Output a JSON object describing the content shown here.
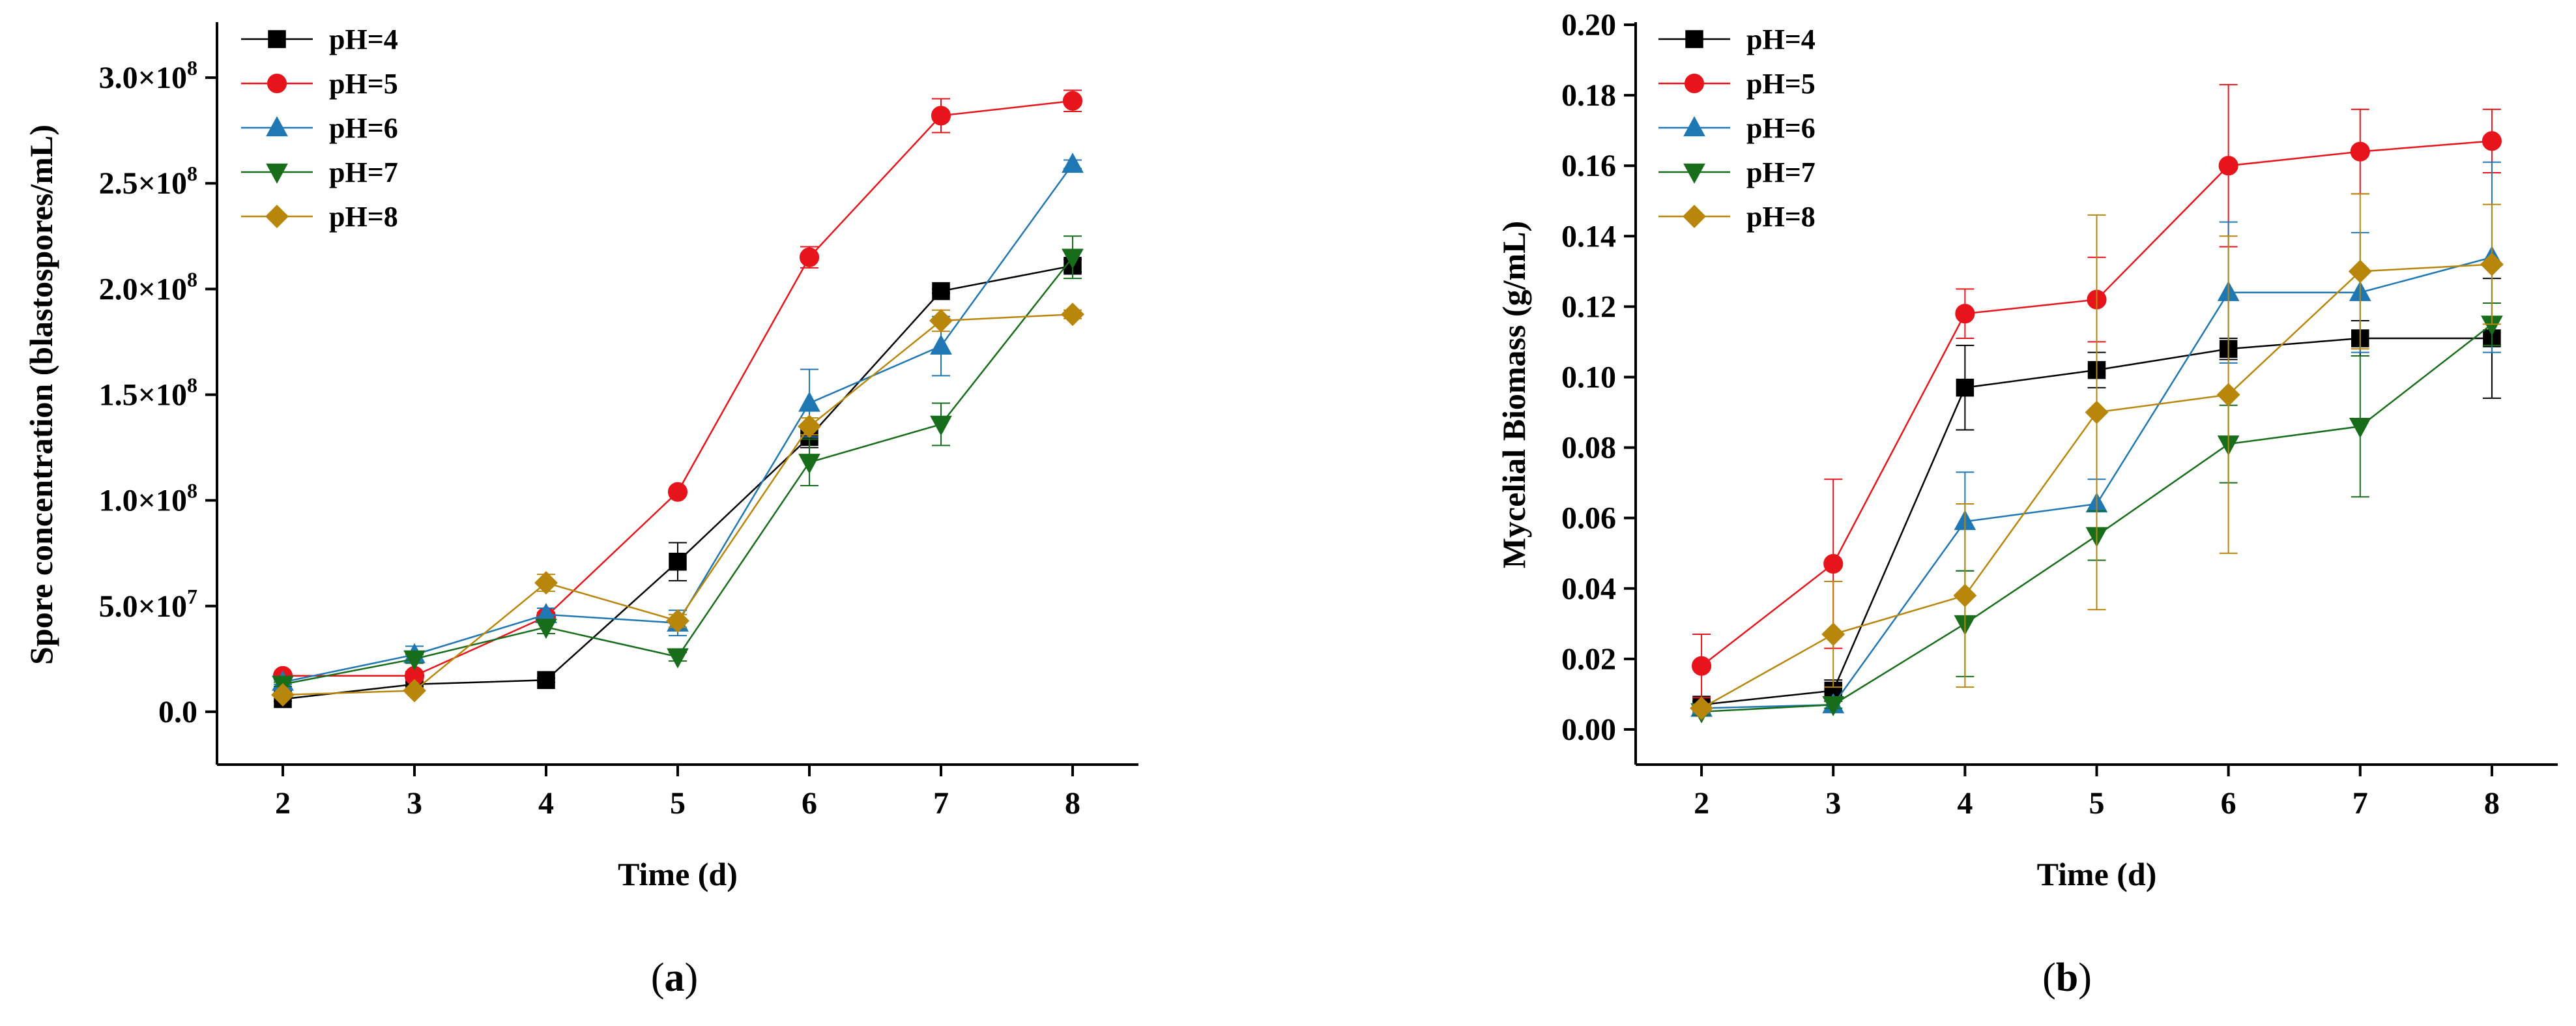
{
  "chart_data": [
    {
      "type": "line",
      "panel_label": "a",
      "xlabel": "Time (d)",
      "ylabel": "Spore concentration (blastospores/mL)",
      "x": [
        2,
        3,
        4,
        5,
        6,
        7,
        8
      ],
      "xlim": [
        1.5,
        8.5
      ],
      "ylim": [
        -25000000,
        325000000
      ],
      "xticks": [
        2,
        3,
        4,
        5,
        6,
        7,
        8
      ],
      "yticks": [
        {
          "value": 0,
          "mantissa": "0.0",
          "exp": ""
        },
        {
          "value": 50000000,
          "mantissa": "5.0×10",
          "exp": "7"
        },
        {
          "value": 100000000,
          "mantissa": "1.0×10",
          "exp": "8"
        },
        {
          "value": 150000000,
          "mantissa": "1.5×10",
          "exp": "8"
        },
        {
          "value": 200000000,
          "mantissa": "2.0×10",
          "exp": "8"
        },
        {
          "value": 250000000,
          "mantissa": "2.5×10",
          "exp": "8"
        },
        {
          "value": 300000000,
          "mantissa": "3.0×10",
          "exp": "8"
        }
      ],
      "legend_position": "top-left",
      "series": [
        {
          "name": "pH=4",
          "color": "#000000",
          "marker": "square",
          "values": [
            6000000,
            13000000,
            15000000,
            71000000,
            130000000,
            199000000,
            211000000
          ],
          "errors": [
            1000000,
            1000000,
            1000000,
            9000000,
            5000000,
            1000000,
            3000000
          ]
        },
        {
          "name": "pH=5",
          "color": "#e8141b",
          "marker": "circle",
          "values": [
            17000000,
            17000000,
            45000000,
            104000000,
            215000000,
            282000000,
            289000000
          ],
          "errors": [
            1000000,
            2000000,
            2000000,
            1000000,
            5000000,
            8000000,
            5000000
          ]
        },
        {
          "name": "pH=6",
          "color": "#1f77b4",
          "marker": "triangle-up",
          "values": [
            14000000,
            27000000,
            46000000,
            42000000,
            146000000,
            173000000,
            259000000
          ],
          "errors": [
            1000000,
            4000000,
            3000000,
            6000000,
            16000000,
            14000000,
            2000000
          ]
        },
        {
          "name": "pH=7",
          "color": "#176d1a",
          "marker": "triangle-down",
          "values": [
            13000000,
            25000000,
            40000000,
            26000000,
            118000000,
            136000000,
            215000000
          ],
          "errors": [
            1000000,
            2000000,
            3000000,
            2000000,
            11000000,
            10000000,
            10000000
          ]
        },
        {
          "name": "pH=8",
          "color": "#b8860b",
          "marker": "diamond",
          "values": [
            8000000,
            10000000,
            61000000,
            43000000,
            135000000,
            185000000,
            188000000
          ],
          "errors": [
            1000000,
            1000000,
            4000000,
            3000000,
            4000000,
            5000000,
            2000000
          ]
        }
      ]
    },
    {
      "type": "line",
      "panel_label": "b",
      "xlabel": "Time (d)",
      "ylabel": "Mycelial Biomass (g/mL)",
      "x": [
        2,
        3,
        4,
        5,
        6,
        7,
        8
      ],
      "xlim": [
        1.5,
        8.5
      ],
      "ylim": [
        -0.01,
        0.2
      ],
      "xticks": [
        2,
        3,
        4,
        5,
        6,
        7,
        8
      ],
      "yticks": [
        {
          "value": 0,
          "mantissa": "0.00",
          "exp": ""
        },
        {
          "value": 0.02,
          "mantissa": "0.02",
          "exp": ""
        },
        {
          "value": 0.04,
          "mantissa": "0.04",
          "exp": ""
        },
        {
          "value": 0.06,
          "mantissa": "0.06",
          "exp": ""
        },
        {
          "value": 0.08,
          "mantissa": "0.08",
          "exp": ""
        },
        {
          "value": 0.1,
          "mantissa": "0.10",
          "exp": ""
        },
        {
          "value": 0.12,
          "mantissa": "0.12",
          "exp": ""
        },
        {
          "value": 0.14,
          "mantissa": "0.14",
          "exp": ""
        },
        {
          "value": 0.16,
          "mantissa": "0.16",
          "exp": ""
        },
        {
          "value": 0.18,
          "mantissa": "0.18",
          "exp": ""
        },
        {
          "value": 0.2,
          "mantissa": "0.20",
          "exp": ""
        }
      ],
      "legend_position": "top-left",
      "series": [
        {
          "name": "pH=4",
          "color": "#000000",
          "marker": "square",
          "values": [
            0.007,
            0.011,
            0.097,
            0.102,
            0.108,
            0.111,
            0.111
          ],
          "errors": [
            0.001,
            0.003,
            0.012,
            0.005,
            0.003,
            0.005,
            0.017
          ]
        },
        {
          "name": "pH=5",
          "color": "#e8141b",
          "marker": "circle",
          "values": [
            0.018,
            0.047,
            0.118,
            0.122,
            0.16,
            0.164,
            0.167
          ],
          "errors": [
            0.009,
            0.024,
            0.007,
            0.012,
            0.023,
            0.012,
            0.009
          ]
        },
        {
          "name": "pH=6",
          "color": "#1f77b4",
          "marker": "triangle-up",
          "values": [
            0.006,
            0.007,
            0.059,
            0.064,
            0.124,
            0.124,
            0.134
          ],
          "errors": [
            0.001,
            0.002,
            0.014,
            0.007,
            0.02,
            0.017,
            0.027
          ]
        },
        {
          "name": "pH=7",
          "color": "#176d1a",
          "marker": "triangle-down",
          "values": [
            0.005,
            0.007,
            0.03,
            0.055,
            0.081,
            0.086,
            0.115
          ],
          "errors": [
            0.001,
            0.001,
            0.015,
            0.007,
            0.011,
            0.02,
            0.006
          ]
        },
        {
          "name": "pH=8",
          "color": "#b8860b",
          "marker": "diamond",
          "values": [
            0.006,
            0.027,
            0.038,
            0.09,
            0.095,
            0.13,
            0.132
          ],
          "errors": [
            0.001,
            0.015,
            0.026,
            0.056,
            0.045,
            0.022,
            0.017
          ]
        }
      ]
    }
  ],
  "captions": [
    {
      "open": "(",
      "letter": "a",
      "close": ")"
    },
    {
      "open": "(",
      "letter": "b",
      "close": ")"
    }
  ]
}
